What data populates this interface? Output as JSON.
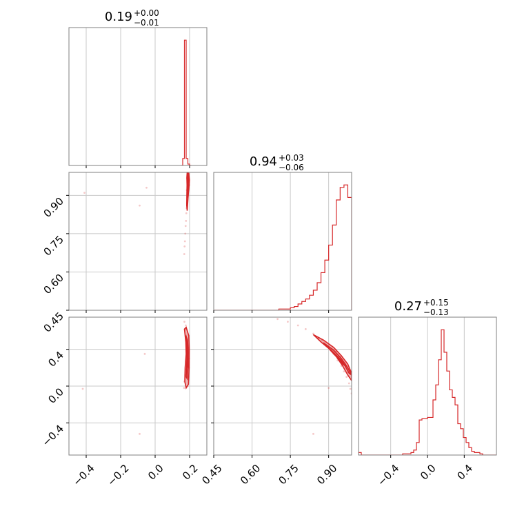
{
  "chart_data": {
    "type": "corner",
    "color": "#d62728",
    "grid": true,
    "parameters": [
      {
        "range": [
          -0.5,
          0.3
        ],
        "ticks": [
          "−0.4",
          "−0.2",
          "0.0",
          "0.2"
        ],
        "tick_values": [
          -0.4,
          -0.2,
          0.0,
          0.2
        ]
      },
      {
        "range": [
          0.45,
          0.99
        ],
        "ticks": [
          "0.45",
          "0.60",
          "0.75",
          "0.90"
        ],
        "tick_values": [
          0.45,
          0.6,
          0.75,
          0.9
        ]
      },
      {
        "range": [
          -0.75,
          0.75
        ],
        "ticks": [
          "−0.4",
          "0.0",
          "0.4"
        ],
        "tick_values": [
          -0.4,
          0.0,
          0.4
        ]
      }
    ],
    "titles": [
      {
        "value": "0.19",
        "plus": "+0.00",
        "minus": "−0.01"
      },
      {
        "value": "0.94",
        "plus": "+0.03",
        "minus": "−0.06"
      },
      {
        "value": "0.27",
        "plus": "+0.15",
        "minus": "−0.13"
      }
    ],
    "histograms": [
      {
        "type": "histogram",
        "edges": [
          0.15,
          0.16,
          0.17,
          0.18,
          0.19,
          0.2,
          0.21
        ],
        "counts": [
          0,
          5,
          90,
          5,
          1,
          0
        ]
      },
      {
        "type": "histogram",
        "edges": [
          0.45,
          0.465,
          0.48,
          0.495,
          0.51,
          0.525,
          0.54,
          0.555,
          0.57,
          0.585,
          0.6,
          0.615,
          0.63,
          0.645,
          0.66,
          0.675,
          0.69,
          0.705,
          0.72,
          0.735,
          0.75,
          0.765,
          0.78,
          0.795,
          0.81,
          0.825,
          0.84,
          0.855,
          0.87,
          0.885,
          0.9,
          0.915,
          0.93,
          0.945,
          0.96,
          0.975,
          0.99
        ],
        "counts": [
          0,
          0,
          0,
          0,
          0,
          0,
          0,
          0,
          0,
          0,
          0,
          0,
          0,
          0,
          0,
          0,
          0,
          1,
          1,
          1,
          2,
          3,
          5,
          7,
          9,
          12,
          16,
          22,
          30,
          40,
          52,
          68,
          88,
          98,
          100,
          90
        ]
      },
      {
        "type": "histogram",
        "edges": [
          -0.75,
          -0.72,
          -0.69,
          -0.66,
          -0.63,
          -0.6,
          -0.57,
          -0.54,
          -0.51,
          -0.48,
          -0.45,
          -0.42,
          -0.39,
          -0.36,
          -0.33,
          -0.3,
          -0.27,
          -0.24,
          -0.21,
          -0.18,
          -0.15,
          -0.12,
          -0.09,
          -0.06,
          -0.03,
          0.0,
          0.03,
          0.06,
          0.09,
          0.12,
          0.15,
          0.18,
          0.21,
          0.24,
          0.27,
          0.3,
          0.33,
          0.36,
          0.39,
          0.42,
          0.45,
          0.48,
          0.51,
          0.54,
          0.57,
          0.6,
          0.63,
          0.66,
          0.69,
          0.72,
          0.75
        ],
        "counts": [
          2,
          0,
          0,
          0,
          0,
          0,
          0,
          0,
          0,
          0,
          0,
          0,
          0,
          0,
          0,
          0,
          1,
          1,
          1,
          2,
          4,
          10,
          28,
          29,
          29,
          30,
          30,
          44,
          56,
          76,
          100,
          82,
          67,
          52,
          46,
          40,
          25,
          21,
          14,
          10,
          6,
          3,
          2,
          2,
          1,
          0,
          0,
          0,
          0,
          0
        ]
      }
    ],
    "scatter": [
      {
        "type": "scatter",
        "x_param": 0,
        "y_param": 1,
        "points": [
          [
            0.19,
            0.99
          ],
          [
            0.193,
            0.97
          ],
          [
            0.195,
            0.95
          ],
          [
            0.19,
            0.93
          ],
          [
            0.187,
            0.91
          ],
          [
            0.192,
            0.9
          ],
          [
            0.188,
            0.89
          ],
          [
            0.185,
            0.87
          ],
          [
            0.183,
            0.85
          ],
          [
            0.181,
            0.83
          ],
          [
            0.179,
            0.8
          ],
          [
            0.177,
            0.78
          ],
          [
            0.175,
            0.75
          ],
          [
            0.173,
            0.72
          ],
          [
            0.171,
            0.7
          ],
          [
            0.169,
            0.67
          ],
          [
            0.196,
            0.985
          ],
          [
            0.186,
            0.965
          ],
          [
            0.198,
            0.94
          ],
          [
            0.184,
            0.92
          ],
          [
            -0.41,
            0.91
          ],
          [
            -0.05,
            0.93
          ],
          [
            -0.09,
            0.86
          ]
        ]
      },
      {
        "type": "scatter",
        "x_param": 0,
        "y_param": 2,
        "points": [
          [
            0.17,
            0.7
          ],
          [
            0.175,
            0.62
          ],
          [
            0.18,
            0.55
          ],
          [
            0.185,
            0.48
          ],
          [
            0.19,
            0.42
          ],
          [
            0.192,
            0.36
          ],
          [
            0.19,
            0.3
          ],
          [
            0.185,
            0.24
          ],
          [
            0.18,
            0.18
          ],
          [
            0.175,
            0.12
          ],
          [
            0.17,
            0.05
          ],
          [
            0.168,
            -0.02
          ],
          [
            0.195,
            0.4
          ],
          [
            0.197,
            0.3
          ],
          [
            0.196,
            0.2
          ],
          [
            0.193,
            0.1
          ],
          [
            0.188,
            0.0
          ],
          [
            0.178,
            0.66
          ],
          [
            -0.06,
            0.35
          ],
          [
            -0.09,
            -0.52
          ],
          [
            -0.42,
            -0.03
          ]
        ]
      },
      {
        "type": "scatter",
        "x_param": 1,
        "y_param": 2,
        "points": [
          [
            0.7,
            0.73
          ],
          [
            0.74,
            0.7
          ],
          [
            0.78,
            0.66
          ],
          [
            0.81,
            0.62
          ],
          [
            0.84,
            0.57
          ],
          [
            0.86,
            0.52
          ],
          [
            0.88,
            0.47
          ],
          [
            0.9,
            0.42
          ],
          [
            0.92,
            0.35
          ],
          [
            0.935,
            0.28
          ],
          [
            0.95,
            0.22
          ],
          [
            0.96,
            0.16
          ],
          [
            0.97,
            0.1
          ],
          [
            0.98,
            0.03
          ],
          [
            0.985,
            -0.03
          ],
          [
            0.99,
            -0.08
          ],
          [
            0.945,
            0.32
          ],
          [
            0.965,
            0.24
          ],
          [
            0.975,
            0.15
          ],
          [
            0.955,
            0.26
          ],
          [
            0.93,
            0.38
          ],
          [
            0.915,
            0.4
          ],
          [
            0.875,
            0.5
          ],
          [
            0.84,
            -0.52
          ],
          [
            0.9,
            -0.02
          ]
        ]
      }
    ],
    "contours": [
      {
        "type": "contour",
        "x_param": 0,
        "y_param": 1,
        "levels": [
          [
            [
              0.188,
              0.99
            ],
            [
              0.195,
              0.985
            ],
            [
              0.199,
              0.96
            ],
            [
              0.196,
              0.93
            ],
            [
              0.192,
              0.9
            ],
            [
              0.188,
              0.86
            ],
            [
              0.186,
              0.84
            ],
            [
              0.183,
              0.86
            ],
            [
              0.184,
              0.9
            ],
            [
              0.185,
              0.94
            ],
            [
              0.184,
              0.97
            ],
            [
              0.186,
              0.99
            ]
          ],
          [
            [
              0.19,
              0.99
            ],
            [
              0.194,
              0.97
            ],
            [
              0.192,
              0.94
            ],
            [
              0.19,
              0.91
            ],
            [
              0.188,
              0.89
            ],
            [
              0.187,
              0.91
            ],
            [
              0.188,
              0.95
            ],
            [
              0.188,
              0.98
            ]
          ]
        ]
      },
      {
        "type": "contour",
        "x_param": 0,
        "y_param": 2,
        "levels": [
          [
            [
              0.17,
              0.62
            ],
            [
              0.18,
              0.64
            ],
            [
              0.195,
              0.55
            ],
            [
              0.198,
              0.4
            ],
            [
              0.197,
              0.2
            ],
            [
              0.193,
              0.02
            ],
            [
              0.18,
              -0.02
            ],
            [
              0.172,
              0.05
            ],
            [
              0.174,
              0.2
            ],
            [
              0.18,
              0.35
            ],
            [
              0.178,
              0.48
            ]
          ],
          [
            [
              0.178,
              0.55
            ],
            [
              0.188,
              0.5
            ],
            [
              0.192,
              0.38
            ],
            [
              0.191,
              0.22
            ],
            [
              0.186,
              0.08
            ],
            [
              0.18,
              0.1
            ],
            [
              0.183,
              0.25
            ],
            [
              0.186,
              0.38
            ],
            [
              0.182,
              0.48
            ]
          ],
          [
            [
              0.184,
              0.45
            ],
            [
              0.189,
              0.4
            ],
            [
              0.189,
              0.28
            ],
            [
              0.186,
              0.2
            ],
            [
              0.184,
              0.28
            ],
            [
              0.185,
              0.38
            ]
          ]
        ]
      },
      {
        "type": "contour",
        "x_param": 1,
        "y_param": 2,
        "levels": [
          [
            [
              0.84,
              0.56
            ],
            [
              0.88,
              0.5
            ],
            [
              0.92,
              0.42
            ],
            [
              0.95,
              0.33
            ],
            [
              0.975,
              0.24
            ],
            [
              0.99,
              0.14
            ],
            [
              0.99,
              0.06
            ],
            [
              0.975,
              0.12
            ],
            [
              0.955,
              0.22
            ],
            [
              0.93,
              0.32
            ],
            [
              0.9,
              0.41
            ],
            [
              0.87,
              0.48
            ]
          ],
          [
            [
              0.88,
              0.47
            ],
            [
              0.92,
              0.39
            ],
            [
              0.95,
              0.3
            ],
            [
              0.975,
              0.2
            ],
            [
              0.99,
              0.12
            ],
            [
              0.98,
              0.14
            ],
            [
              0.96,
              0.24
            ],
            [
              0.935,
              0.32
            ],
            [
              0.905,
              0.4
            ]
          ],
          [
            [
              0.92,
              0.36
            ],
            [
              0.95,
              0.28
            ],
            [
              0.97,
              0.21
            ],
            [
              0.955,
              0.24
            ],
            [
              0.935,
              0.31
            ]
          ]
        ]
      }
    ]
  }
}
